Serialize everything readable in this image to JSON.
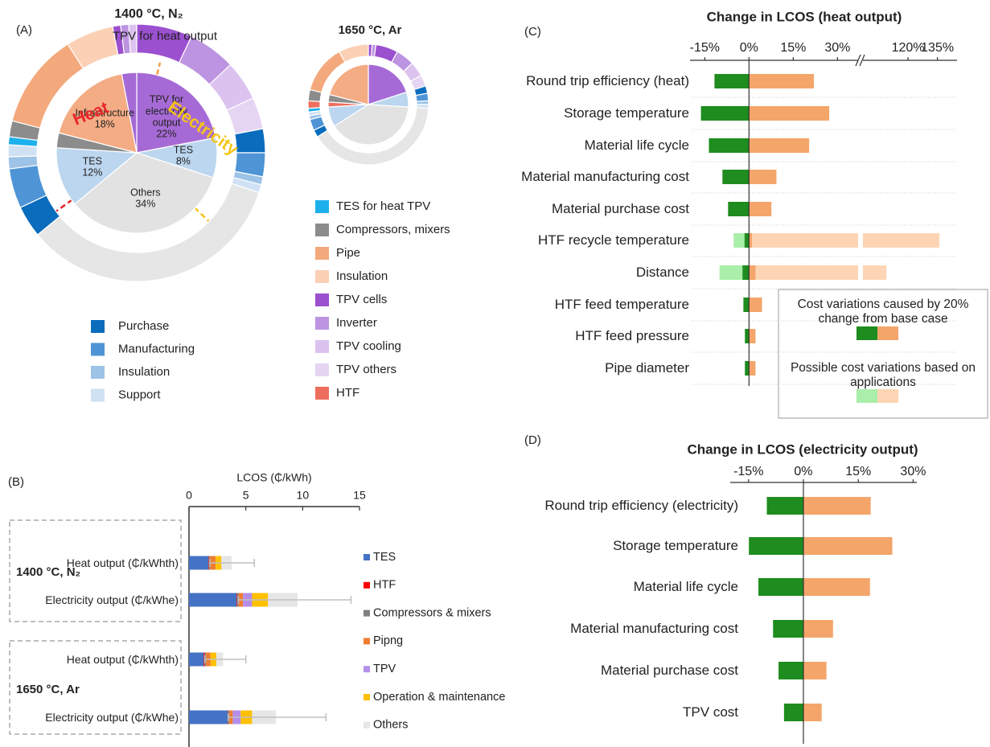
{
  "chart_data": [
    {
      "type": "donut",
      "panel": "(A)",
      "title": "1400 °C, N₂",
      "annotations": [
        "Heat",
        "Electricity",
        "TPV for heat output"
      ],
      "inner": {
        "categories": [
          "TPV for electricity output",
          "TES",
          "Others",
          "TES",
          null,
          "Infrastructure",
          null
        ],
        "values": [
          22,
          8,
          34,
          12,
          3,
          18,
          3
        ],
        "value_labels": [
          "22%",
          "8%",
          "34%",
          "12%",
          null,
          "18%",
          null
        ],
        "colors": [
          "#a66ad6",
          "#bcd6ef",
          "#e2e2e2",
          "#bcd6ef",
          "#8c8c8c",
          "#f4ac84",
          "#a66ad6"
        ]
      },
      "outer": {
        "values": [
          7,
          6,
          5,
          4,
          3,
          3,
          1,
          1,
          34,
          4,
          5,
          1.5,
          1.5,
          1,
          2,
          12,
          6,
          1,
          1,
          1
        ],
        "colors": [
          "#9b50d0",
          "#bd94e1",
          "#dcc3ef",
          "#e5d5f3",
          "#0a6cbd",
          "#4f95d6",
          "#9dc3e6",
          "#d0e1f4",
          "#e6e6e6",
          "#0a6cbd",
          "#4f95d6",
          "#9dc3e6",
          "#d0e1f4",
          "#1cb0ec",
          "#8c8c8c",
          "#f4a97c",
          "#fbd0b4",
          "#9b50d0",
          "#bd94e1",
          "#dcc3ef"
        ]
      },
      "legend": [
        {
          "name": "Purchase",
          "color": "#0a6cbd"
        },
        {
          "name": "Manufacturing",
          "color": "#4f95d6"
        },
        {
          "name": "Insulation",
          "color": "#9dc3e6"
        },
        {
          "name": "Support",
          "color": "#d0e1f4"
        },
        {
          "name": "TES for heat TPV",
          "color": "#1cb0ec"
        },
        {
          "name": "Compressors, mixers",
          "color": "#8c8c8c"
        },
        {
          "name": "Pipe",
          "color": "#f4a97c"
        },
        {
          "name": "Insulation",
          "color": "#fbd0b4"
        },
        {
          "name": "TPV cells",
          "color": "#9b50d0"
        },
        {
          "name": "Inverter",
          "color": "#bd94e1"
        },
        {
          "name": "TPV cooling",
          "color": "#dcc3ef"
        },
        {
          "name": "TPV others",
          "color": "#e5d5f3"
        },
        {
          "name": "HTF",
          "color": "#ee6e5e"
        }
      ]
    },
    {
      "type": "donut",
      "title": "1650 °C, Ar",
      "inner": {
        "values": [
          20,
          6,
          40,
          8,
          2,
          3,
          21
        ],
        "colors": [
          "#a66ad6",
          "#bcd6ef",
          "#e2e2e2",
          "#bcd6ef",
          "#ee6e5e",
          "#8c8c8c",
          "#f4ac84"
        ]
      },
      "outer": {
        "values": [
          1,
          1,
          6,
          5,
          4,
          3,
          2,
          2,
          1,
          1,
          40,
          2,
          3,
          1,
          1,
          1,
          2,
          3,
          13,
          8
        ],
        "colors": [
          "#9b50d0",
          "#bd94e1",
          "#9b50d0",
          "#bd94e1",
          "#dcc3ef",
          "#e5d5f3",
          "#0a6cbd",
          "#4f95d6",
          "#9dc3e6",
          "#d0e1f4",
          "#e6e6e6",
          "#0a6cbd",
          "#4f95d6",
          "#9dc3e6",
          "#d0e1f4",
          "#1cb0ec",
          "#ee6e5e",
          "#8c8c8c",
          "#f4a97c",
          "#fbd0b4"
        ]
      }
    },
    {
      "type": "bar",
      "panel": "(B)",
      "xlabel": "LCOS (₵/kWh)",
      "orientation": "horizontal",
      "stacked": true,
      "groups": [
        "1400 °C, N₂",
        "1650 °C, Ar"
      ],
      "categories": [
        "Heat output (₵/kWhth)",
        "Electricity output (₵/kWhe)",
        "Heat output (₵/kWhth)",
        "Electricity output (₵/kWhe)"
      ],
      "series": [
        {
          "name": "TES",
          "color": "#4472c4",
          "values": [
            1.7,
            4.2,
            1.3,
            3.4
          ]
        },
        {
          "name": "HTF",
          "color": "#ff0000",
          "values": [
            0.05,
            0.05,
            0.1,
            0.05
          ]
        },
        {
          "name": "Compressors & mixers",
          "color": "#7f7f7f",
          "values": [
            0.1,
            0.1,
            0.1,
            0.1
          ]
        },
        {
          "name": "Pipng",
          "color": "#ed7d31",
          "values": [
            0.5,
            0.4,
            0.4,
            0.3
          ]
        },
        {
          "name": "TPV",
          "color": "#b48ee8",
          "values": [
            0,
            0.8,
            0,
            0.7
          ]
        },
        {
          "name": "Operation & maintenance",
          "color": "#ffc000",
          "values": [
            0.5,
            1.4,
            0.5,
            1.0
          ]
        },
        {
          "name": "Others",
          "color": "#e6e6e6",
          "values": [
            0.9,
            2.6,
            0.6,
            2.1
          ]
        }
      ],
      "error_minus": [
        1.9,
        5.2,
        1.6,
        4.2
      ],
      "error_plus": [
        2.0,
        4.7,
        2.0,
        4.4
      ],
      "error_color": "#c0c0c0",
      "xlim": [
        0,
        15
      ],
      "xticks": [
        0,
        5,
        10,
        15
      ]
    },
    {
      "type": "tornado",
      "panel": "(C)",
      "title": "Change in LCOS (heat output)",
      "categories": [
        "Round trip efficiency (heat)",
        "Storage temperature",
        "Material life cycle",
        "Material manufacturing cost",
        "Material purchase cost",
        "HTF recycle temperature",
        "Distance",
        "HTF feed temperature",
        "HTF feed pressure",
        "Pipe diameter"
      ],
      "series": [
        {
          "color": "#1e8c1e",
          "values": [
            -11.7,
            -16.3,
            -13.6,
            -9,
            -7.1,
            -1.5,
            -2.2,
            -1.9,
            -1.4,
            -1.4
          ]
        },
        {
          "color": "#f4a56a",
          "values": [
            22,
            27.2,
            20.4,
            9.3,
            7.6,
            1,
            2.2,
            4.4,
            2.2,
            2.2
          ]
        },
        {
          "color": "#a9eea9",
          "values": [
            null,
            null,
            null,
            null,
            null,
            -5.2,
            -10,
            null,
            null,
            null
          ]
        },
        {
          "color": "#fdd5b4",
          "values": [
            null,
            null,
            null,
            null,
            null,
            136,
            109,
            null,
            null,
            null
          ]
        }
      ],
      "legend": [
        {
          "label": "Cost variations caused by 20% change from base case",
          "colors": [
            "#1e8c1e",
            "#f4a56a"
          ]
        },
        {
          "label": "Possible cost variations based on applications",
          "colors": [
            "#a9eea9",
            "#fdd5b4"
          ]
        }
      ],
      "xlim": [
        -20,
        145
      ],
      "xbreak": [
        37,
        97
      ],
      "xticks": [
        {
          "value": -15,
          "label": "-15%"
        },
        {
          "value": 0,
          "label": "0%"
        },
        {
          "value": 15,
          "label": "15%"
        },
        {
          "value": 30,
          "label": "30%"
        },
        {
          "value": 120,
          "label": "120%"
        },
        {
          "value": 135,
          "label": "135%"
        }
      ]
    },
    {
      "type": "tornado",
      "panel": "(D)",
      "title": "Change in LCOS (electricity output)",
      "categories": [
        "Round trip efficiency (electricity)",
        "Storage temperature",
        "Material life cycle",
        "Material manufacturing cost",
        "Material purchase cost",
        "TPV cost"
      ],
      "series": [
        {
          "color": "#1e8c1e",
          "values": [
            -10,
            -14.9,
            -12.3,
            -8.3,
            -6.8,
            -5.3
          ]
        },
        {
          "color": "#f4a56a",
          "values": [
            18.4,
            24.3,
            18.2,
            8.1,
            6.3,
            5
          ]
        }
      ],
      "xlim": [
        -20,
        31
      ],
      "xticks": [
        {
          "value": -15,
          "label": "-15%"
        },
        {
          "value": 0,
          "label": "0%"
        },
        {
          "value": 15,
          "label": "15%"
        },
        {
          "value": 30,
          "label": "30%"
        }
      ]
    }
  ]
}
